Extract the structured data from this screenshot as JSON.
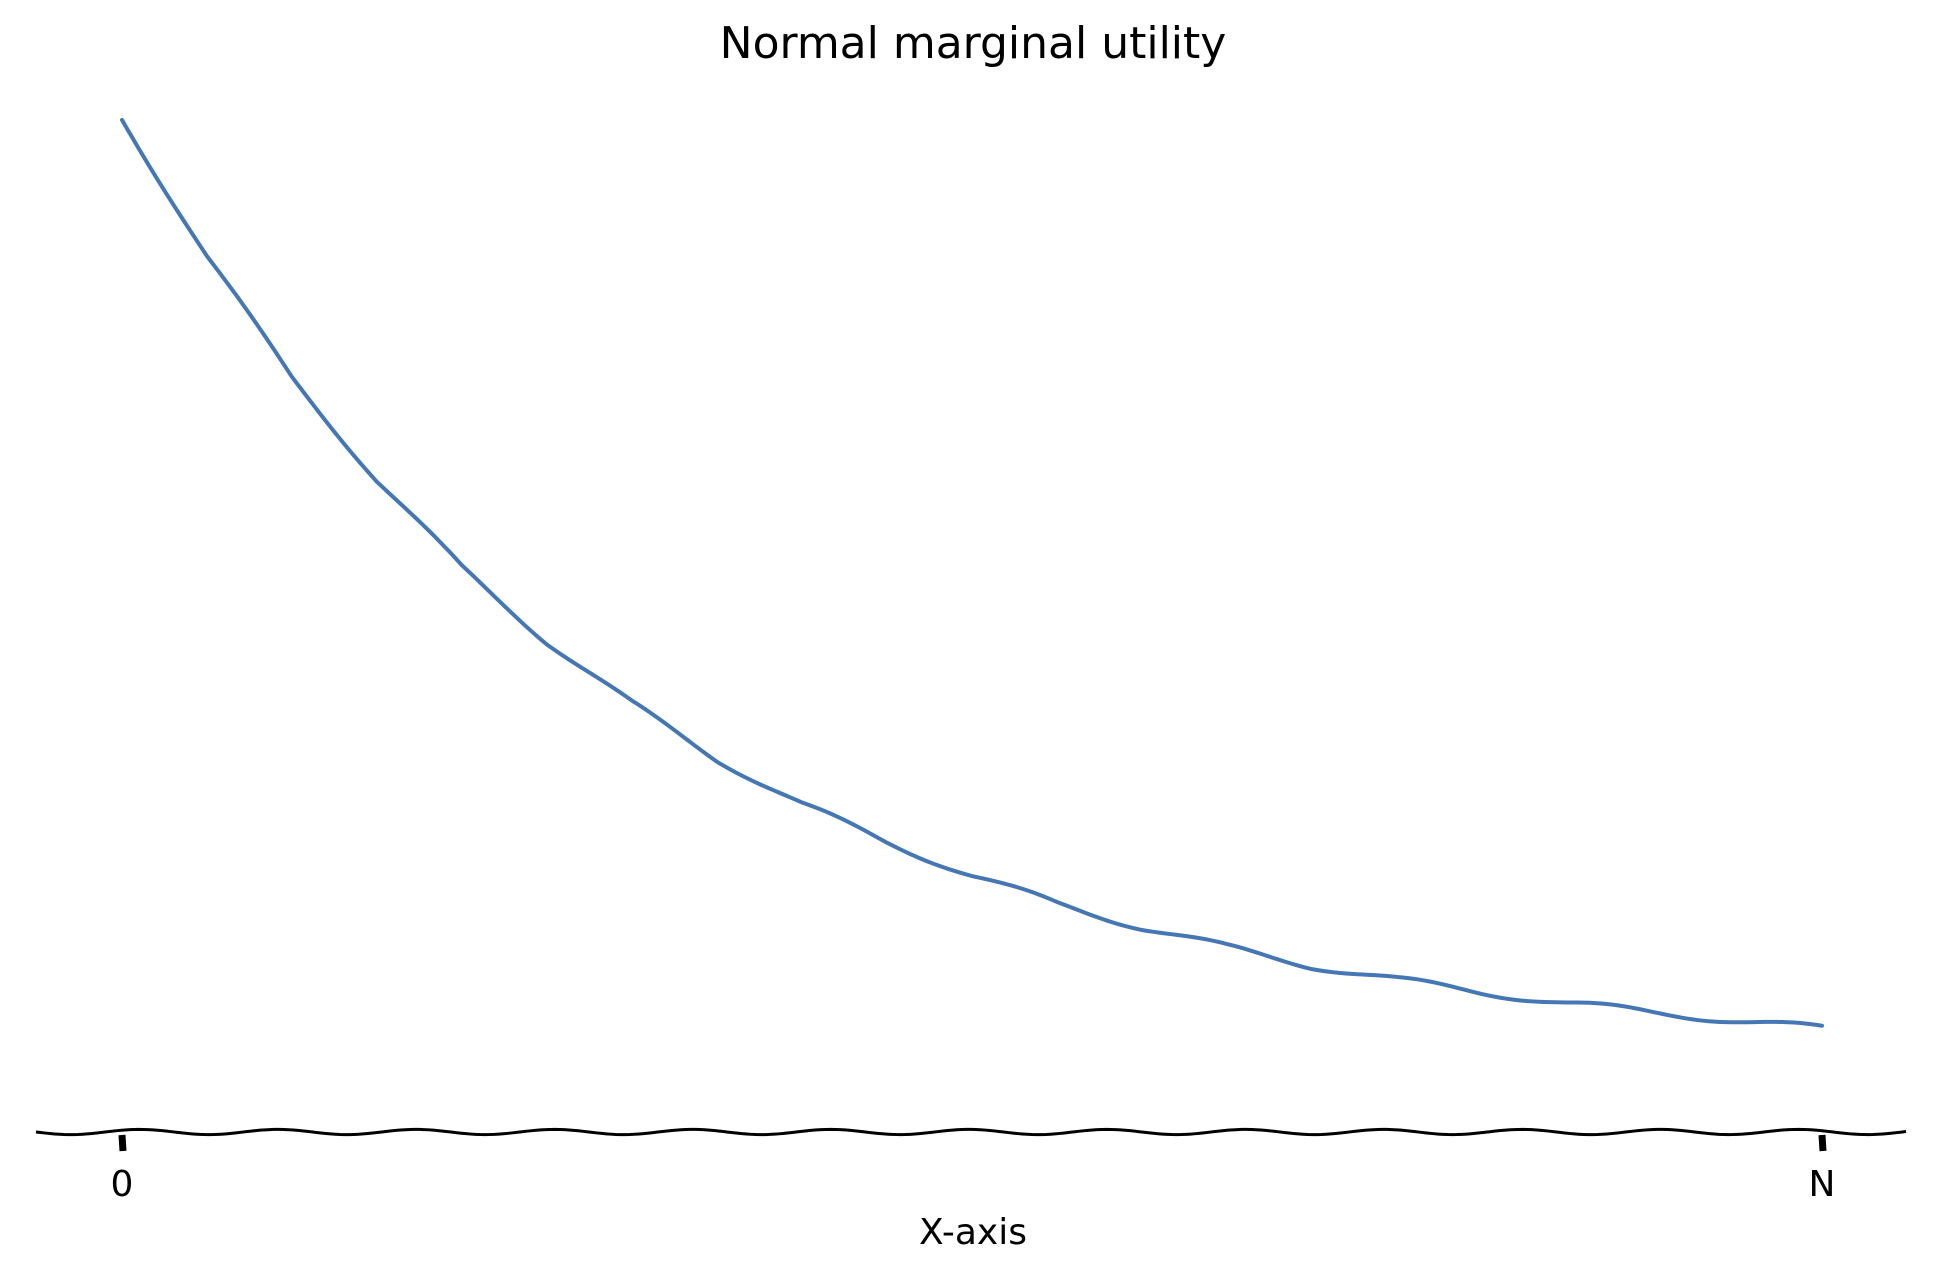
{
  "chart_data": {
    "type": "line",
    "title": "Normal marginal utility",
    "xlabel": "X-axis",
    "ylabel": "",
    "xlim": [
      0,
      1
    ],
    "ylim": [
      0,
      1
    ],
    "x_ticks": [
      "0",
      "N"
    ],
    "y_ticks": [],
    "grid": false,
    "axis_spines": [
      "bottom"
    ],
    "series": [
      {
        "color": "#4477b4",
        "x": [
          0.0,
          0.05,
          0.1,
          0.15,
          0.2,
          0.25,
          0.3,
          0.35,
          0.4,
          0.45,
          0.5,
          0.55,
          0.6,
          0.65,
          0.7,
          0.75,
          0.8,
          0.85,
          0.9,
          0.95,
          1.0
        ],
        "y": [
          1.0,
          0.863,
          0.744,
          0.643,
          0.556,
          0.484,
          0.422,
          0.368,
          0.323,
          0.286,
          0.253,
          0.225,
          0.202,
          0.182,
          0.164,
          0.15,
          0.138,
          0.127,
          0.118,
          0.11,
          0.102
        ]
      }
    ]
  }
}
